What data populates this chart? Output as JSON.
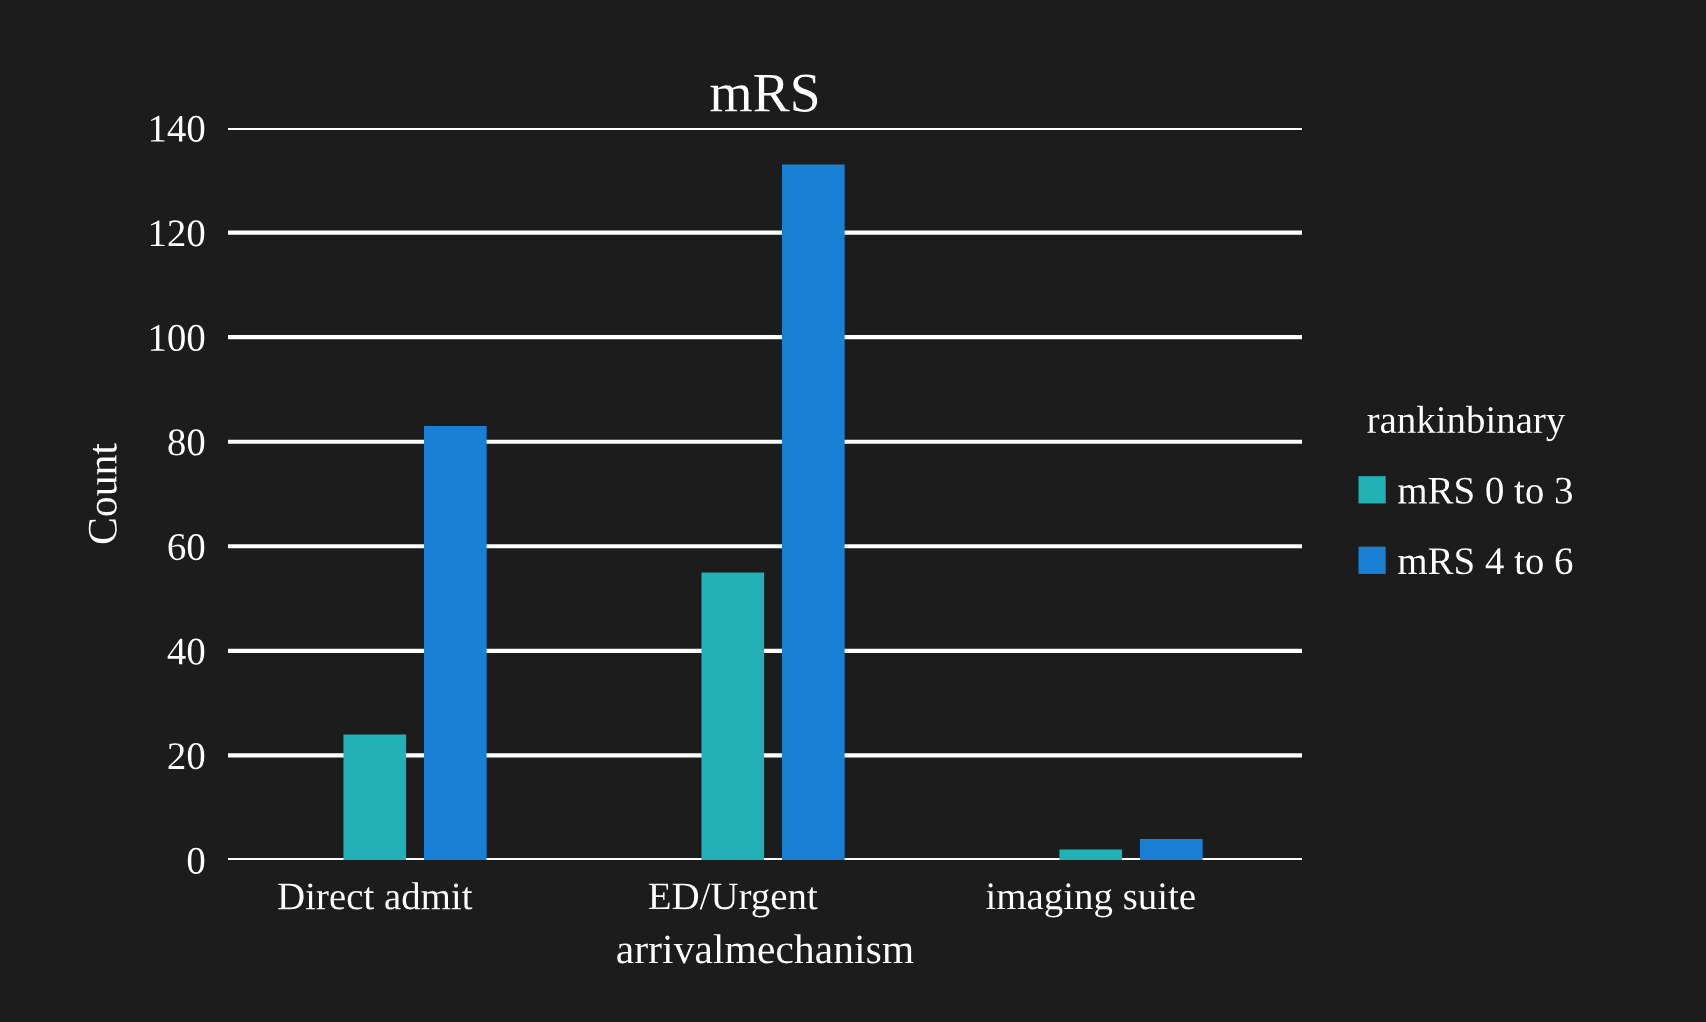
{
  "chart_data": {
    "type": "bar",
    "title": "mRS",
    "xlabel": "arrivalmechanism",
    "ylabel": "Count",
    "legend_title": "rankinbinary",
    "categories": [
      "Direct admit",
      "ED/Urgent",
      "imaging suite"
    ],
    "series": [
      {
        "name": "mRS 0 to 3",
        "color": "#21b1b6",
        "values": [
          24,
          55,
          2
        ]
      },
      {
        "name": "mRS 4 to 6",
        "color": "#1a80d6",
        "values": [
          83,
          133,
          4
        ]
      }
    ],
    "ylim": [
      0,
      140
    ],
    "yticks": [
      0,
      20,
      40,
      60,
      80,
      100,
      120,
      140
    ],
    "grid": "y",
    "legend": "right"
  }
}
